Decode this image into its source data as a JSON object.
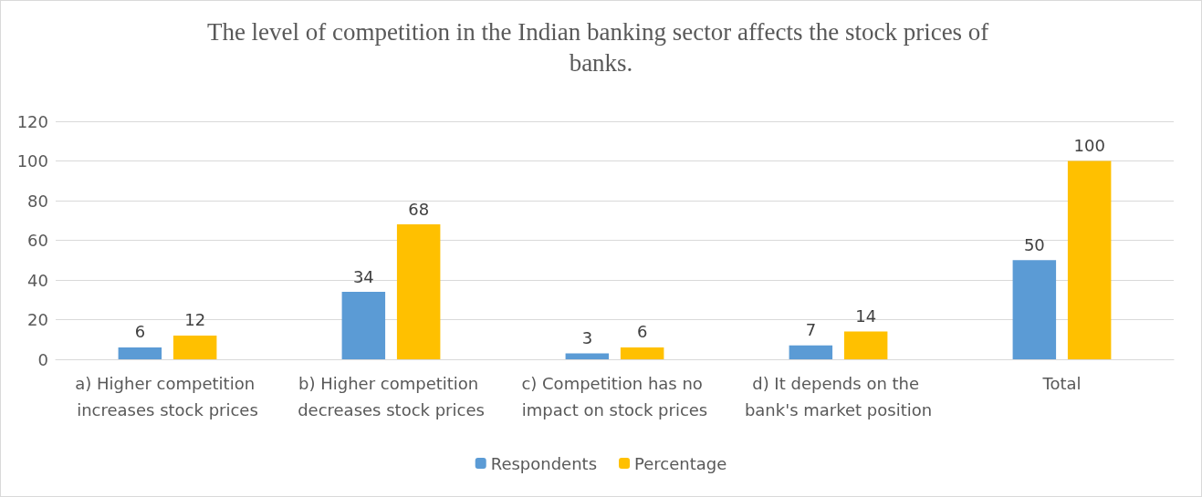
{
  "chart_data": {
    "type": "bar",
    "title": "The level of competition in the Indian banking sector affects the stock prices of banks.",
    "categories": [
      "a) Higher competition increases stock prices",
      "b) Higher competition decreases stock prices",
      "c) Competition has no impact on stock prices",
      "d) It depends on the bank's market position",
      "Total"
    ],
    "series": [
      {
        "name": "Respondents",
        "color": "#5b9bd5",
        "values": [
          6,
          34,
          3,
          7,
          50
        ]
      },
      {
        "name": "Percentage",
        "color": "#ffc000",
        "values": [
          12,
          68,
          6,
          14,
          100
        ]
      }
    ],
    "ylim": [
      0,
      120
    ],
    "yticks": [
      0,
      20,
      40,
      60,
      80,
      100,
      120
    ],
    "grid": "y",
    "legend": "bottom",
    "data_labels": true
  }
}
